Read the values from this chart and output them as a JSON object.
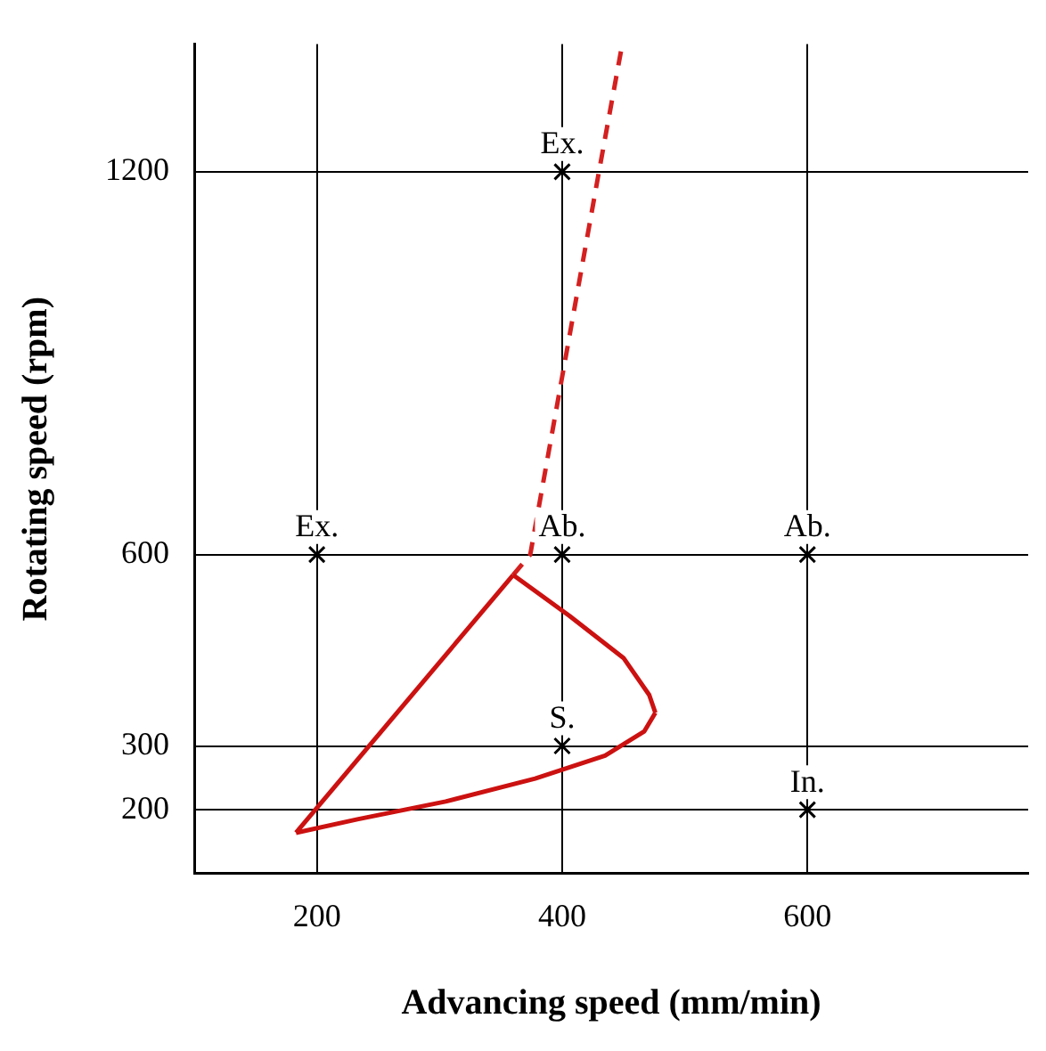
{
  "chart_data": {
    "type": "scatter",
    "xlabel": "Advancing speed (mm/min)",
    "ylabel": "Rotating speed (rpm)",
    "xlim": [
      100,
      780
    ],
    "xticks": [
      200,
      400,
      600
    ],
    "ylim": [
      100,
      1400
    ],
    "yticks": [
      200,
      300,
      600,
      1200
    ],
    "grid": true,
    "legend": false,
    "marker": "cross",
    "series": [
      {
        "type": "scatter",
        "color": "#000000",
        "x": [
          200,
          400,
          400,
          600,
          400,
          600
        ],
        "values": [
          600,
          1200,
          600,
          600,
          300,
          200
        ]
      },
      {
        "type": "line",
        "color": "#cc1111",
        "line_style": "solid",
        "marker": "none",
        "x": [
          183,
          360
        ],
        "values": [
          164,
          568
        ]
      },
      {
        "type": "line",
        "color": "#cc1111",
        "line_style": "solid",
        "marker": "none",
        "x": [
          360,
          406,
          450,
          471,
          476
        ],
        "values": [
          568,
          504,
          438,
          380,
          352
        ]
      },
      {
        "type": "line",
        "color": "#cc1111",
        "line_style": "solid",
        "marker": "none",
        "x": [
          183,
          233,
          305,
          378,
          435,
          467,
          476
        ],
        "values": [
          164,
          185,
          213,
          249,
          285,
          323,
          352
        ]
      },
      {
        "type": "line",
        "color": "#d42020",
        "line_style": "dashed",
        "marker": "none",
        "x": [
          360,
          374,
          430,
          449
        ],
        "values": [
          568,
          600,
          1200,
          1400
        ]
      }
    ],
    "annotations": [
      {
        "text": "Ex.",
        "x": 200,
        "y": 600
      },
      {
        "text": "Ex.",
        "x": 400,
        "y": 1200
      },
      {
        "text": "Ab.",
        "x": 400,
        "y": 600
      },
      {
        "text": "Ab.",
        "x": 600,
        "y": 600
      },
      {
        "text": "S.",
        "x": 400,
        "y": 300
      },
      {
        "text": "In.",
        "x": 600,
        "y": 200
      }
    ]
  }
}
